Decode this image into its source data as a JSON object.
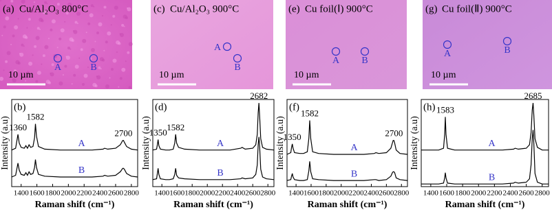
{
  "images": [
    {
      "label": "(a)",
      "title": "Cu/Al₂O₃  800°C",
      "scale_bar": "10 µm",
      "points": [
        "A",
        "B"
      ]
    },
    {
      "label": "(c)",
      "title": "Cu/Al₂O₃  900°C",
      "scale_bar": "10 µm",
      "points": [
        "A",
        "B"
      ]
    },
    {
      "label": "(e)",
      "title": "Cu foil(Ⅰ) 900°C",
      "scale_bar": "10 µm",
      "points": [
        "A",
        "B"
      ]
    },
    {
      "label": "(g)",
      "title": "Cu foil(Ⅱ) 900°C",
      "scale_bar": "10 µm",
      "points": [
        "A",
        "B"
      ]
    }
  ],
  "chart_data": [
    {
      "type": "line",
      "title": "(b)",
      "x_label": "Raman shift (cm⁻¹)",
      "y_label": "Intensity (a.u)",
      "label_color": "#3535c8",
      "xlim": [
        1280,
        2880
      ],
      "xticks": [
        1400,
        1600,
        1800,
        2000,
        2200,
        2400,
        2600,
        2800
      ],
      "ylim": [
        0,
        100
      ],
      "annotations": [
        1360,
        1582,
        2700
      ],
      "x": [
        1280,
        1330,
        1345,
        1360,
        1375,
        1400,
        1440,
        1460,
        1480,
        1500,
        1520,
        1550,
        1570,
        1582,
        1595,
        1620,
        1700,
        1900,
        2100,
        2300,
        2440,
        2460,
        2500,
        2600,
        2660,
        2690,
        2700,
        2710,
        2740,
        2800,
        2880
      ],
      "series": [
        {
          "name": "A",
          "color": "#000000",
          "values": [
            42,
            44,
            52,
            60,
            50,
            45,
            44,
            47,
            44,
            48,
            45,
            46,
            56,
            72,
            58,
            46,
            43,
            42,
            42,
            42,
            43,
            44,
            43,
            44,
            48,
            53,
            53,
            51,
            46,
            43,
            42
          ]
        },
        {
          "name": "B",
          "color": "#000000",
          "values": [
            11,
            13,
            20,
            27,
            19,
            14,
            13,
            16,
            13,
            17,
            14,
            15,
            22,
            31,
            22,
            14,
            12,
            11,
            11,
            11,
            12,
            13,
            12,
            13,
            17,
            21,
            21,
            20,
            15,
            12,
            11
          ]
        }
      ]
    },
    {
      "type": "line",
      "title": "(d)",
      "x_label": "Raman shift (cm⁻¹)",
      "y_label": "Intensity (a.u)",
      "label_color": "#3535c8",
      "xlim": [
        1280,
        2880
      ],
      "xticks": [
        1400,
        1600,
        1800,
        2000,
        2200,
        2400,
        2600,
        2800
      ],
      "ylim": [
        0,
        100
      ],
      "annotations": [
        1350,
        1582,
        2682
      ],
      "x": [
        1280,
        1330,
        1340,
        1350,
        1360,
        1380,
        1450,
        1500,
        1550,
        1570,
        1582,
        1595,
        1620,
        1700,
        1900,
        2100,
        2300,
        2440,
        2460,
        2500,
        2600,
        2640,
        2660,
        2672,
        2682,
        2692,
        2705,
        2730,
        2780,
        2880
      ],
      "series": [
        {
          "name": "A",
          "color": "#000000",
          "values": [
            42,
            43,
            48,
            54,
            47,
            43,
            42,
            42,
            43,
            50,
            60,
            50,
            45,
            43,
            42,
            42,
            42,
            44,
            45,
            43,
            44,
            48,
            60,
            85,
            96,
            80,
            55,
            45,
            43,
            42
          ]
        },
        {
          "name": "B",
          "color": "#000000",
          "values": [
            8,
            9,
            15,
            21,
            14,
            9,
            8,
            8,
            9,
            14,
            21,
            13,
            10,
            9,
            8,
            8,
            8,
            9,
            10,
            9,
            10,
            14,
            25,
            48,
            57,
            45,
            20,
            11,
            9,
            8
          ]
        }
      ]
    },
    {
      "type": "line",
      "title": "(f)",
      "x_label": "Raman shift (cm⁻¹)",
      "y_label": "Intensity (a.u)",
      "label_color": "#3535c8",
      "xlim": [
        1280,
        2880
      ],
      "xticks": [
        1400,
        1600,
        1800,
        2000,
        2200,
        2400,
        2600,
        2800
      ],
      "ylim": [
        0,
        100
      ],
      "annotations": [
        1350,
        1582,
        2700
      ],
      "x": [
        1280,
        1330,
        1340,
        1350,
        1360,
        1380,
        1450,
        1500,
        1550,
        1570,
        1582,
        1595,
        1620,
        1700,
        1900,
        2100,
        2300,
        2440,
        2460,
        2500,
        2600,
        2660,
        2680,
        2690,
        2700,
        2710,
        2730,
        2780,
        2880
      ],
      "series": [
        {
          "name": "A",
          "color": "#000000",
          "values": [
            37,
            39,
            45,
            49,
            44,
            39,
            38,
            38,
            40,
            55,
            76,
            55,
            40,
            38,
            37,
            37,
            37,
            38,
            39,
            38,
            39,
            44,
            50,
            53,
            53,
            50,
            42,
            38,
            37
          ]
        },
        {
          "name": "B",
          "color": "#000000",
          "values": [
            7,
            8,
            12,
            15,
            11,
            8,
            7,
            7,
            8,
            18,
            29,
            17,
            9,
            8,
            7,
            7,
            7,
            8,
            8,
            7,
            8,
            12,
            16,
            17,
            17,
            16,
            10,
            8,
            7
          ]
        }
      ]
    },
    {
      "type": "line",
      "title": "(h)",
      "x_label": "Raman shift (cm⁻¹)",
      "y_label": "Intensity (a.u)",
      "label_color": "#3535c8",
      "xlim": [
        1280,
        2880
      ],
      "xticks": [
        1400,
        1600,
        1800,
        2000,
        2200,
        2400,
        2600,
        2800
      ],
      "ylim": [
        0,
        100
      ],
      "annotations": [
        1583,
        2685
      ],
      "x": [
        1280,
        1350,
        1400,
        1450,
        1500,
        1560,
        1575,
        1583,
        1591,
        1610,
        1700,
        1900,
        2100,
        2300,
        2440,
        2460,
        2500,
        2600,
        2640,
        2660,
        2675,
        2685,
        2695,
        2710,
        2740,
        2800,
        2880
      ],
      "series": [
        {
          "name": "A",
          "color": "#000000",
          "values": [
            42,
            42,
            42,
            42,
            42,
            44,
            60,
            80,
            60,
            44,
            42,
            42,
            42,
            42,
            43,
            44,
            43,
            44,
            48,
            62,
            88,
            96,
            82,
            55,
            45,
            42,
            42
          ]
        },
        {
          "name": "B",
          "color": "#000000",
          "values": [
            3,
            3,
            3,
            3,
            3,
            4,
            10,
            16,
            10,
            4,
            3,
            3,
            3,
            3,
            4,
            5,
            4,
            5,
            9,
            25,
            55,
            65,
            50,
            15,
            5,
            3,
            3
          ]
        }
      ]
    }
  ]
}
